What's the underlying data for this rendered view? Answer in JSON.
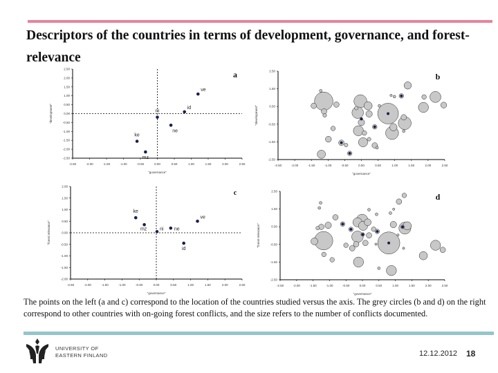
{
  "title": "Descriptors of the countries in terms of development, governance, and forest-relevance",
  "caption": "The points on the left (a and c) correspond to the location of the countries studied versus the axis. The grey circles (b and d) on the right correspond to other countries with on-going forest conflicts, and the size refers to the number of conflicts documented.",
  "footer": {
    "university_line1": "UNIVERSITY OF",
    "university_line2": "EASTERN FINLAND",
    "date": "12.12.2012",
    "page_number": "18"
  },
  "colors": {
    "accent_top": "#e8839c",
    "accent_bottom": "#93c5cc",
    "point": "#1a1f4a",
    "bubble": "#c8c8c8"
  },
  "chart_data": [
    {
      "panel": "a",
      "type": "scatter",
      "xlabel": "\"governance\"",
      "ylabel": "\"development\"",
      "xlim": [
        -2.5,
        2.5
      ],
      "ylim": [
        -2.5,
        2.5
      ],
      "xstep": 0.5,
      "ystep": 0.5,
      "reference_lines": {
        "x": 0,
        "y": 0,
        "style": "dashed"
      },
      "points": [
        {
          "label": "ve",
          "x": 1.2,
          "y": 1.1
        },
        {
          "label": "id",
          "x": 0.8,
          "y": 0.1
        },
        {
          "label": "ni",
          "x": 0.0,
          "y": -0.2
        },
        {
          "label": "ne",
          "x": 0.4,
          "y": -0.65
        },
        {
          "label": "ke",
          "x": -0.6,
          "y": -1.55
        },
        {
          "label": "mz",
          "x": -0.35,
          "y": -2.15
        }
      ]
    },
    {
      "panel": "b",
      "type": "scatter",
      "xlabel": "\"governance\"",
      "ylabel": "\"development\"",
      "xlim": [
        -2.5,
        2.5
      ],
      "ylim": [
        -2.5,
        2.5
      ],
      "xstep": 0.5,
      "ystep": 1.0,
      "bubbles": [
        {
          "x": -1.13,
          "y": 0.8,
          "size": 40
        },
        {
          "x": -1.43,
          "y": 0.54,
          "size": 12
        },
        {
          "x": -1.22,
          "y": 1.39,
          "size": 6
        },
        {
          "x": -1.12,
          "y": 0.22,
          "size": 12
        },
        {
          "x": -1.1,
          "y": 0.0,
          "size": 8
        },
        {
          "x": -0.75,
          "y": 0.61,
          "size": 12
        },
        {
          "x": -0.85,
          "y": -0.74,
          "size": 10
        },
        {
          "x": -0.99,
          "y": -1.35,
          "size": 13
        },
        {
          "x": -1.2,
          "y": -2.2,
          "size": 18
        },
        {
          "x": -0.46,
          "y": -1.68,
          "size": 8
        },
        {
          "x": -0.03,
          "y": 0.8,
          "size": 28
        },
        {
          "x": -0.11,
          "y": 0.15,
          "size": 25
        },
        {
          "x": -0.15,
          "y": 0.41,
          "size": 8
        },
        {
          "x": 0.2,
          "y": 0.54,
          "size": 18
        },
        {
          "x": 0.23,
          "y": 0.08,
          "size": 14
        },
        {
          "x": 0.0,
          "y": -0.4,
          "size": 14
        },
        {
          "x": -0.09,
          "y": -0.87,
          "size": 22
        },
        {
          "x": 0.09,
          "y": -1.0,
          "size": 10
        },
        {
          "x": 0.05,
          "y": -1.52,
          "size": 20
        },
        {
          "x": 0.23,
          "y": -1.35,
          "size": 8
        },
        {
          "x": 0.4,
          "y": -1.7,
          "size": 12
        },
        {
          "x": 0.47,
          "y": -1.83,
          "size": 6
        },
        {
          "x": 0.54,
          "y": 0.54,
          "size": 6
        },
        {
          "x": 0.89,
          "y": 1.13,
          "size": 5
        },
        {
          "x": 0.99,
          "y": 1.06,
          "size": 6
        },
        {
          "x": 1.39,
          "y": 1.69,
          "size": 16
        },
        {
          "x": 0.96,
          "y": -0.67,
          "size": 16
        },
        {
          "x": 0.92,
          "y": -1.0,
          "size": 28
        },
        {
          "x": 1.3,
          "y": -0.44,
          "size": 28
        },
        {
          "x": 1.27,
          "y": -0.11,
          "size": 12
        },
        {
          "x": 1.27,
          "y": -0.89,
          "size": 6
        },
        {
          "x": 1.88,
          "y": 1.04,
          "size": 10
        },
        {
          "x": 1.86,
          "y": 0.45,
          "size": 22
        },
        {
          "x": 2.22,
          "y": 1.04,
          "size": 24
        },
        {
          "x": 2.47,
          "y": 0.58,
          "size": 13
        }
      ],
      "study_countries": [
        {
          "x": 1.2,
          "y": 1.1,
          "size": 10
        },
        {
          "x": 0.8,
          "y": 0.1,
          "size": 45
        },
        {
          "x": 0.0,
          "y": -0.2,
          "size": 6
        },
        {
          "x": 0.4,
          "y": -0.65,
          "size": 10
        },
        {
          "x": -0.6,
          "y": -1.55,
          "size": 12
        },
        {
          "x": -0.35,
          "y": -2.15,
          "size": 10
        }
      ]
    },
    {
      "panel": "c",
      "type": "scatter",
      "xlabel": "\"governance\"",
      "ylabel": "\"forest relevance\"",
      "xlim": [
        -2.5,
        2.5
      ],
      "ylim": [
        -2.0,
        2.0
      ],
      "xstep": 0.5,
      "ystep": 0.5,
      "reference_lines": {
        "x": 0,
        "y": 0,
        "style": "dashed"
      },
      "points": [
        {
          "label": "ke",
          "x": -0.6,
          "y": 0.65
        },
        {
          "label": "mz",
          "x": -0.35,
          "y": 0.35
        },
        {
          "label": "ni",
          "x": 0.02,
          "y": 0.05
        },
        {
          "label": "ne",
          "x": 0.42,
          "y": 0.2
        },
        {
          "label": "ve",
          "x": 1.2,
          "y": 0.5
        },
        {
          "label": "id",
          "x": 0.8,
          "y": -0.45
        }
      ]
    },
    {
      "panel": "d",
      "type": "scatter",
      "xlabel": "\"governance\"",
      "ylabel": "\"forest relevance\"",
      "xlim": [
        -2.5,
        2.5
      ],
      "ylim": [
        -2.5,
        2.5
      ],
      "xstep": 0.5,
      "ystep": 1.0,
      "bubbles": [
        {
          "x": -1.18,
          "y": -0.29,
          "size": 40
        },
        {
          "x": -1.46,
          "y": -0.33,
          "size": 15
        },
        {
          "x": -1.25,
          "y": 0.49,
          "size": 12
        },
        {
          "x": -1.36,
          "y": 0.42,
          "size": 8
        },
        {
          "x": -1.04,
          "y": 0.58,
          "size": 14
        },
        {
          "x": -0.82,
          "y": 1.03,
          "size": 12
        },
        {
          "x": -1.27,
          "y": 1.85,
          "size": 6
        },
        {
          "x": -1.31,
          "y": 1.56,
          "size": 6
        },
        {
          "x": -1.17,
          "y": -1.07,
          "size": 10
        },
        {
          "x": -0.92,
          "y": -1.37,
          "size": 10
        },
        {
          "x": -0.5,
          "y": -0.55,
          "size": 10
        },
        {
          "x": -0.31,
          "y": -0.72,
          "size": 12
        },
        {
          "x": -0.15,
          "y": 0.75,
          "size": 20
        },
        {
          "x": -0.01,
          "y": 0.88,
          "size": 25
        },
        {
          "x": 0.02,
          "y": 0.55,
          "size": 20
        },
        {
          "x": 0.16,
          "y": 0.75,
          "size": 15
        },
        {
          "x": -0.15,
          "y": -0.07,
          "size": 25
        },
        {
          "x": -0.19,
          "y": -0.49,
          "size": 12
        },
        {
          "x": -0.12,
          "y": -1.5,
          "size": 22
        },
        {
          "x": 0.09,
          "y": -0.42,
          "size": 12
        },
        {
          "x": 0.2,
          "y": 0.01,
          "size": 12
        },
        {
          "x": 0.34,
          "y": 0.36,
          "size": 10
        },
        {
          "x": 0.2,
          "y": 1.46,
          "size": 6
        },
        {
          "x": 0.43,
          "y": 1.2,
          "size": 6
        },
        {
          "x": 0.41,
          "y": -0.49,
          "size": 5
        },
        {
          "x": 0.5,
          "y": -1.85,
          "size": 6
        },
        {
          "x": 0.88,
          "y": -1.98,
          "size": 22
        },
        {
          "x": 0.94,
          "y": 0.62,
          "size": 14
        },
        {
          "x": 1.29,
          "y": 0.42,
          "size": 26
        },
        {
          "x": 1.36,
          "y": 0.55,
          "size": 18
        },
        {
          "x": 1.08,
          "y": 0.03,
          "size": 5
        },
        {
          "x": 1.11,
          "y": 1.92,
          "size": 12
        },
        {
          "x": 1.27,
          "y": 2.27,
          "size": 10
        },
        {
          "x": 0.85,
          "y": 1.27,
          "size": 6
        },
        {
          "x": 0.95,
          "y": 1.49,
          "size": 5
        },
        {
          "x": 1.25,
          "y": -0.72,
          "size": 5
        },
        {
          "x": 1.85,
          "y": -1.14,
          "size": 18
        },
        {
          "x": 2.22,
          "y": -0.55,
          "size": 22
        },
        {
          "x": 2.44,
          "y": -0.81,
          "size": 12
        }
      ],
      "study_countries": [
        {
          "x": -0.6,
          "y": 0.65,
          "size": 10
        },
        {
          "x": -0.35,
          "y": 0.35,
          "size": 10
        },
        {
          "x": 0.01,
          "y": 0.06,
          "size": 8
        },
        {
          "x": 0.45,
          "y": 0.23,
          "size": 10
        },
        {
          "x": 0.8,
          "y": -0.42,
          "size": 48
        },
        {
          "x": 1.22,
          "y": 0.49,
          "size": 8
        }
      ]
    }
  ]
}
